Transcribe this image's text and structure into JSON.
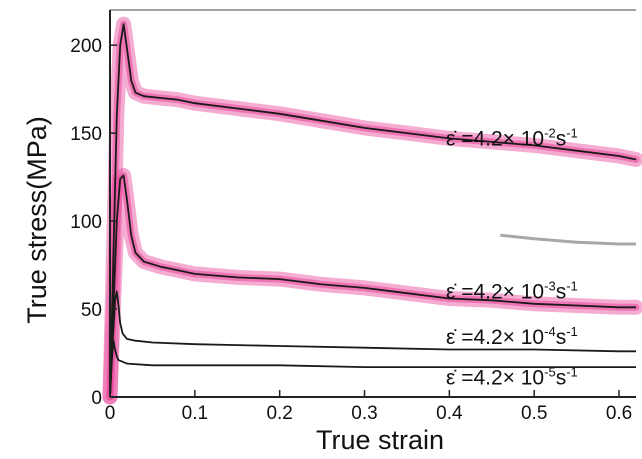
{
  "chart_data": {
    "type": "line",
    "xlabel": "True strain",
    "ylabel": "True stress(MPa)",
    "xlim": [
      0,
      0.62
    ],
    "ylim": [
      0,
      220
    ],
    "x_ticks": [
      "0",
      "0.1",
      "0.2",
      "0.3",
      "0.4",
      "0.5",
      "0.6"
    ],
    "y_ticks": [
      "0",
      "50",
      "100",
      "150",
      "200"
    ],
    "grid": false,
    "series": [
      {
        "name": "ε̇ =4.2×10-2s-1",
        "label_prefix": "ε̇ =4.2",
        "label_times": "×",
        "label_base": " 10",
        "label_exp": "-2",
        "label_unit": "s",
        "label_unit_exp": "-1",
        "label_y": 147,
        "line_color": "#1a1a1a",
        "band_color": "#e8479b",
        "band": true,
        "x": [
          0,
          0.004,
          0.008,
          0.012,
          0.016,
          0.02,
          0.025,
          0.03,
          0.04,
          0.06,
          0.08,
          0.1,
          0.15,
          0.2,
          0.25,
          0.3,
          0.35,
          0.4,
          0.45,
          0.5,
          0.55,
          0.6,
          0.62
        ],
        "y": [
          0,
          80,
          160,
          200,
          212,
          198,
          180,
          173,
          171,
          170,
          169,
          167,
          164,
          161,
          157,
          153,
          150,
          147,
          145,
          143,
          140,
          137,
          135
        ]
      },
      {
        "name": "ε̇ =4.2×10-3s-1",
        "label_prefix": "ε̇ =4.2",
        "label_times": "×",
        "label_base": " 10",
        "label_exp": "-3",
        "label_unit": "s",
        "label_unit_exp": "-1",
        "label_y": 60,
        "line_color": "#1a1a1a",
        "band_color": "#e8479b",
        "band": true,
        "x": [
          0,
          0.004,
          0.008,
          0.012,
          0.016,
          0.02,
          0.025,
          0.03,
          0.04,
          0.06,
          0.08,
          0.1,
          0.15,
          0.2,
          0.25,
          0.3,
          0.35,
          0.4,
          0.45,
          0.5,
          0.55,
          0.6,
          0.62
        ],
        "y": [
          0,
          50,
          100,
          124,
          126,
          112,
          92,
          82,
          77,
          74,
          72,
          70,
          68,
          67,
          64,
          62,
          59,
          56,
          55,
          53,
          52,
          51,
          51
        ]
      },
      {
        "name": "ε̇ =4.2×10-4s-1",
        "label_prefix": "ε̇ =4.2",
        "label_times": "×",
        "label_base": " 10",
        "label_exp": "-4",
        "label_unit": "s",
        "label_unit_exp": "-1",
        "label_y": 34,
        "line_color": "#1a1a1a",
        "band": false,
        "x": [
          0,
          0.003,
          0.006,
          0.008,
          0.01,
          0.012,
          0.015,
          0.02,
          0.03,
          0.05,
          0.1,
          0.2,
          0.3,
          0.4,
          0.5,
          0.6,
          0.62
        ],
        "y": [
          0,
          30,
          55,
          60,
          52,
          42,
          36,
          33,
          32,
          31,
          30,
          29,
          28,
          27,
          27,
          26,
          26
        ]
      },
      {
        "name": "ε̇ =4.2×10-5s-1",
        "label_prefix": "ε̇ =4.2",
        "label_times": "×",
        "label_base": " 10",
        "label_exp": "-5",
        "label_unit": "s",
        "label_unit_exp": "-1",
        "label_y": 11,
        "line_color": "#1a1a1a",
        "band": false,
        "x": [
          0,
          0.002,
          0.004,
          0.006,
          0.008,
          0.01,
          0.015,
          0.02,
          0.05,
          0.1,
          0.2,
          0.3,
          0.4,
          0.5,
          0.6,
          0.62
        ],
        "y": [
          0,
          20,
          32,
          27,
          23,
          21,
          20,
          19,
          18,
          18,
          18,
          17,
          17,
          17,
          17,
          17
        ]
      },
      {
        "color": "#a8a8a8",
        "band": false,
        "artifact": true,
        "x": [
          0.46,
          0.5,
          0.55,
          0.6,
          0.62
        ],
        "y": [
          92,
          90,
          88,
          87,
          87
        ]
      }
    ]
  }
}
